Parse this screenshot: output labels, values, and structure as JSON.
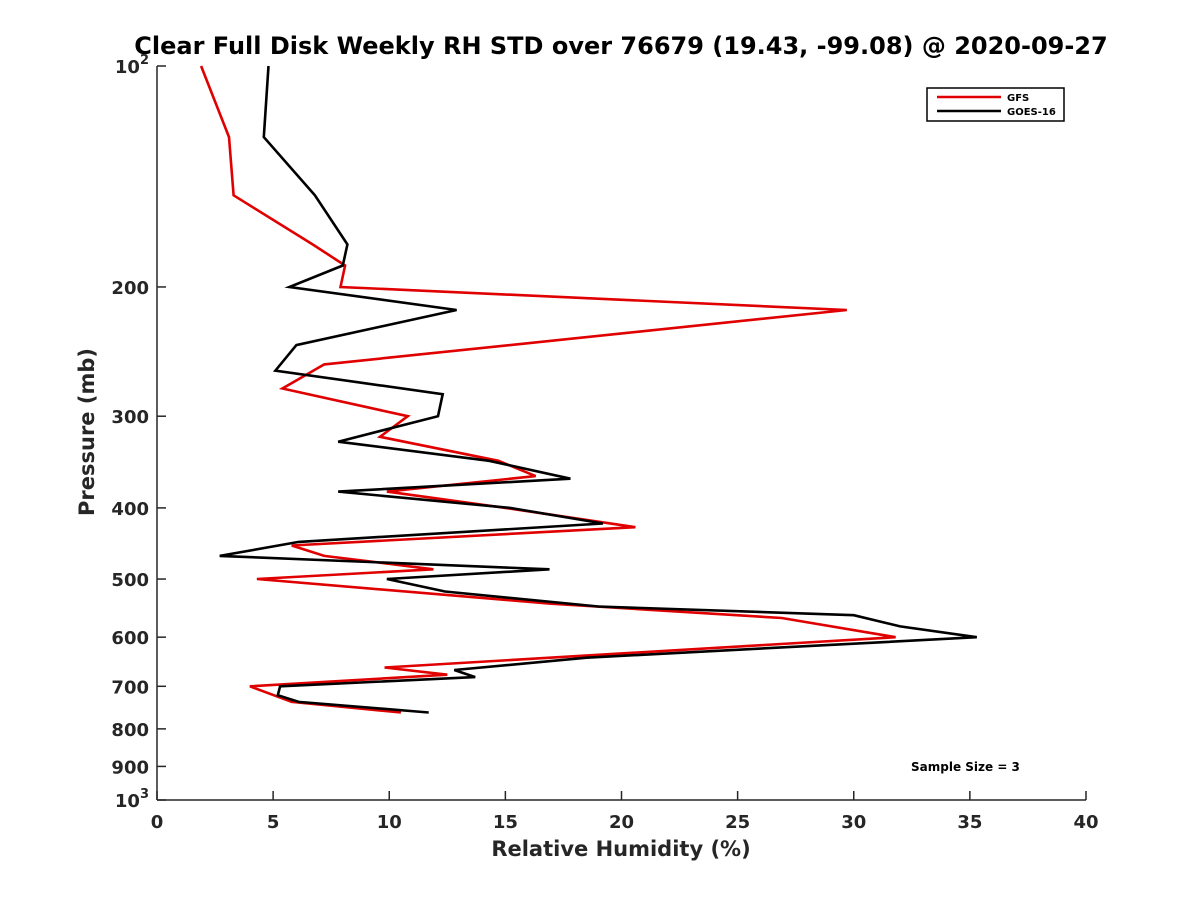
{
  "chart_data": {
    "type": "line",
    "title": "Clear Full Disk Weekly RH STD over 76679 (19.43, -99.08) @ 2020-09-27",
    "xlabel": "Relative Humidity (%)",
    "ylabel": "Pressure (mb)",
    "xlim": [
      0,
      40
    ],
    "ylim": [
      100,
      1000
    ],
    "y_scale": "log",
    "y_reversed": true,
    "grid": false,
    "legend_position": "top-right",
    "x_ticks": [
      "0",
      "5",
      "10",
      "15",
      "20",
      "25",
      "30",
      "35",
      "40"
    ],
    "x_tick_values": [
      0,
      5,
      10,
      15,
      20,
      25,
      30,
      35,
      40
    ],
    "y_tick_values": [
      100,
      200,
      300,
      400,
      500,
      600,
      700,
      800,
      900,
      1000
    ],
    "y_tick_labels": [
      {
        "base": "10",
        "exp": "2"
      },
      {
        "base": "200",
        "exp": ""
      },
      {
        "base": "300",
        "exp": ""
      },
      {
        "base": "400",
        "exp": ""
      },
      {
        "base": "500",
        "exp": ""
      },
      {
        "base": "600",
        "exp": ""
      },
      {
        "base": "700",
        "exp": ""
      },
      {
        "base": "800",
        "exp": ""
      },
      {
        "base": "900",
        "exp": ""
      },
      {
        "base": "10",
        "exp": "3"
      }
    ],
    "annotation": "Sample Size = 3",
    "series": [
      {
        "name": "GFS",
        "color": "#e00000",
        "points": [
          [
            1.9,
            100
          ],
          [
            3.1,
            125
          ],
          [
            3.3,
            150
          ],
          [
            6.7,
            175
          ],
          [
            8.1,
            187
          ],
          [
            7.9,
            200
          ],
          [
            29.7,
            215
          ],
          [
            7.2,
            255
          ],
          [
            5.4,
            275
          ],
          [
            10.8,
            300
          ],
          [
            9.6,
            320
          ],
          [
            14.7,
            345
          ],
          [
            16.3,
            362
          ],
          [
            9.9,
            380
          ],
          [
            15.0,
            400
          ],
          [
            20.6,
            425
          ],
          [
            5.8,
            450
          ],
          [
            7.2,
            465
          ],
          [
            11.9,
            485
          ],
          [
            4.3,
            500
          ],
          [
            16.9,
            540
          ],
          [
            26.9,
            565
          ],
          [
            31.8,
            600
          ],
          [
            9.8,
            660
          ],
          [
            12.5,
            675
          ],
          [
            4.0,
            700
          ],
          [
            5.8,
            735
          ],
          [
            10.5,
            760
          ]
        ]
      },
      {
        "name": "GOES-16",
        "color": "#000000",
        "points": [
          [
            4.8,
            100
          ],
          [
            4.6,
            125
          ],
          [
            6.8,
            150
          ],
          [
            8.2,
            175
          ],
          [
            8.0,
            187
          ],
          [
            5.7,
            200
          ],
          [
            12.9,
            215
          ],
          [
            6.0,
            240
          ],
          [
            5.1,
            260
          ],
          [
            12.3,
            280
          ],
          [
            12.1,
            300
          ],
          [
            7.8,
            325
          ],
          [
            14.3,
            345
          ],
          [
            17.8,
            365
          ],
          [
            7.8,
            380
          ],
          [
            15.2,
            400
          ],
          [
            19.2,
            420
          ],
          [
            6.1,
            445
          ],
          [
            2.7,
            465
          ],
          [
            16.9,
            485
          ],
          [
            9.9,
            500
          ],
          [
            12.4,
            520
          ],
          [
            19.0,
            545
          ],
          [
            30.0,
            560
          ],
          [
            32.0,
            580
          ],
          [
            35.3,
            600
          ],
          [
            18.5,
            640
          ],
          [
            12.8,
            665
          ],
          [
            13.7,
            680
          ],
          [
            5.3,
            700
          ],
          [
            5.2,
            720
          ],
          [
            6.1,
            735
          ],
          [
            11.7,
            760
          ]
        ]
      }
    ]
  }
}
